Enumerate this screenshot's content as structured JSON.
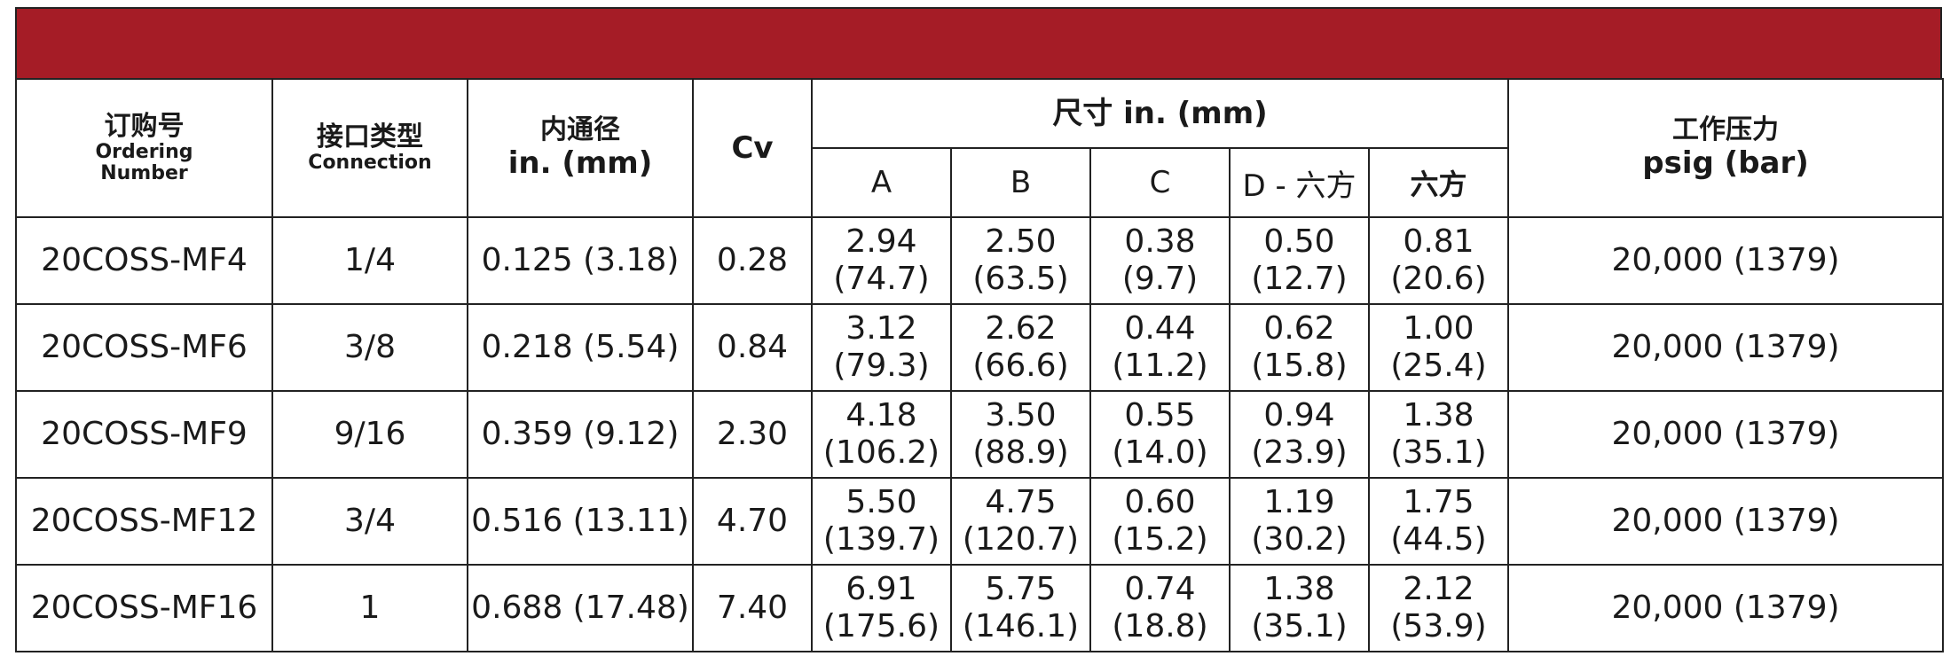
{
  "table": {
    "headers": {
      "ordering_cn": "订购号",
      "ordering_en_1": "Ordering",
      "ordering_en_2": "Number",
      "connection_cn": "接口类型",
      "connection_en": "Connection",
      "bore_cn": "内通径",
      "bore_en": "in. (mm)",
      "cv": "Cv",
      "dims": "尺寸 in. (mm)",
      "dim_a": "A",
      "dim_b": "B",
      "dim_c": "C",
      "dim_d": "D - 六方",
      "dim_hex": "六方",
      "pressure_cn": "工作压力",
      "pressure_en": "psig (bar)"
    },
    "rows": [
      {
        "part": "20COSS-MF4",
        "conn": "1/4",
        "bore": "0.125 (3.18)",
        "cv": "0.28",
        "a1": "2.94",
        "a2": "(74.7)",
        "b1": "2.50",
        "b2": "(63.5)",
        "c1": "0.38",
        "c2": "(9.7)",
        "d1": "0.50",
        "d2": "(12.7)",
        "h1": "0.81",
        "h2": "(20.6)",
        "pressure": "20,000 (1379)"
      },
      {
        "part": "20COSS-MF6",
        "conn": "3/8",
        "bore": "0.218 (5.54)",
        "cv": "0.84",
        "a1": "3.12",
        "a2": "(79.3)",
        "b1": "2.62",
        "b2": "(66.6)",
        "c1": "0.44",
        "c2": "(11.2)",
        "d1": "0.62",
        "d2": "(15.8)",
        "h1": "1.00",
        "h2": "(25.4)",
        "pressure": "20,000 (1379)"
      },
      {
        "part": "20COSS-MF9",
        "conn": "9/16",
        "bore": "0.359 (9.12)",
        "cv": "2.30",
        "a1": "4.18",
        "a2": "(106.2)",
        "b1": "3.50",
        "b2": "(88.9)",
        "c1": "0.55",
        "c2": "(14.0)",
        "d1": "0.94",
        "d2": "(23.9)",
        "h1": "1.38",
        "h2": "(35.1)",
        "pressure": "20,000 (1379)"
      },
      {
        "part": "20COSS-MF12",
        "conn": "3/4",
        "bore": "0.516 (13.11)",
        "cv": "4.70",
        "a1": "5.50",
        "a2": "(139.7)",
        "b1": "4.75",
        "b2": "(120.7)",
        "c1": "0.60",
        "c2": "(15.2)",
        "d1": "1.19",
        "d2": "(30.2)",
        "h1": "1.75",
        "h2": "(44.5)",
        "pressure": "20,000 (1379)"
      },
      {
        "part": "20COSS-MF16",
        "conn": "1",
        "bore": "0.688 (17.48)",
        "cv": "7.40",
        "a1": "6.91",
        "a2": "(175.6)",
        "b1": "5.75",
        "b2": "(146.1)",
        "c1": "0.74",
        "c2": "(18.8)",
        "d1": "1.38",
        "d2": "(35.1)",
        "h1": "2.12",
        "h2": "(53.9)",
        "pressure": "20,000 (1379)"
      }
    ]
  },
  "colors": {
    "banner": "#a51c26",
    "border": "#222222"
  }
}
